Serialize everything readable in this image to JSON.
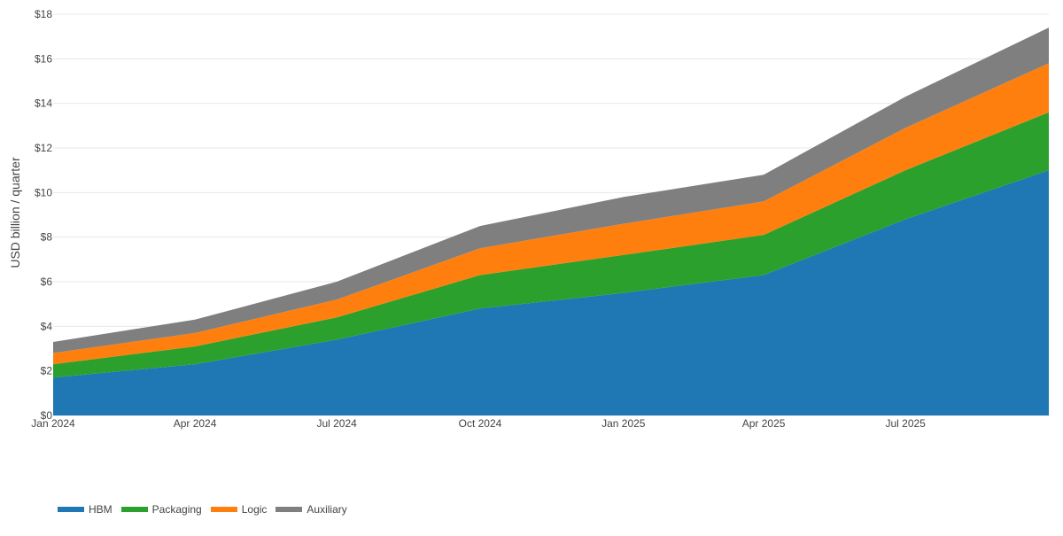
{
  "chart_data": {
    "type": "area",
    "stacked": true,
    "title": "",
    "xlabel": "",
    "ylabel": "USD billion / quarter",
    "ylim": [
      0,
      18
    ],
    "yticks": [
      0,
      2,
      4,
      6,
      8,
      10,
      12,
      14,
      16,
      18
    ],
    "ytick_labels": [
      "$0",
      "$2",
      "$4",
      "$6",
      "$8",
      "$10",
      "$12",
      "$14",
      "$16",
      "$18"
    ],
    "x": [
      "2024-01-01",
      "2024-04-01",
      "2024-07-01",
      "2024-10-01",
      "2025-01-01",
      "2025-04-01",
      "2025-07-01",
      "2025-10-01"
    ],
    "xlim": [
      "2024-01-01",
      "2025-10-01"
    ],
    "xticks": [
      "2024-01-01",
      "2024-04-01",
      "2024-07-01",
      "2024-10-01",
      "2025-01-01",
      "2025-04-01",
      "2025-07-01"
    ],
    "xtick_labels": [
      "Jan 2024",
      "Apr 2024",
      "Jul 2024",
      "Oct 2024",
      "Jan 2025",
      "Apr 2025",
      "Jul 2025"
    ],
    "grid": true,
    "legend_position": "bottom-left",
    "series": [
      {
        "name": "HBM",
        "color": "#1f77b4",
        "values": [
          1.7,
          2.3,
          3.4,
          4.8,
          5.5,
          6.3,
          8.8,
          11.0
        ]
      },
      {
        "name": "Packaging",
        "color": "#2ca02c",
        "values": [
          0.6,
          0.8,
          1.0,
          1.5,
          1.7,
          1.8,
          2.2,
          2.6
        ]
      },
      {
        "name": "Logic",
        "color": "#ff7f0e",
        "values": [
          0.5,
          0.6,
          0.8,
          1.2,
          1.4,
          1.5,
          1.9,
          2.2
        ]
      },
      {
        "name": "Auxiliary",
        "color": "#7f7f7f",
        "values": [
          0.5,
          0.6,
          0.8,
          1.0,
          1.2,
          1.2,
          1.4,
          1.6
        ]
      }
    ]
  }
}
